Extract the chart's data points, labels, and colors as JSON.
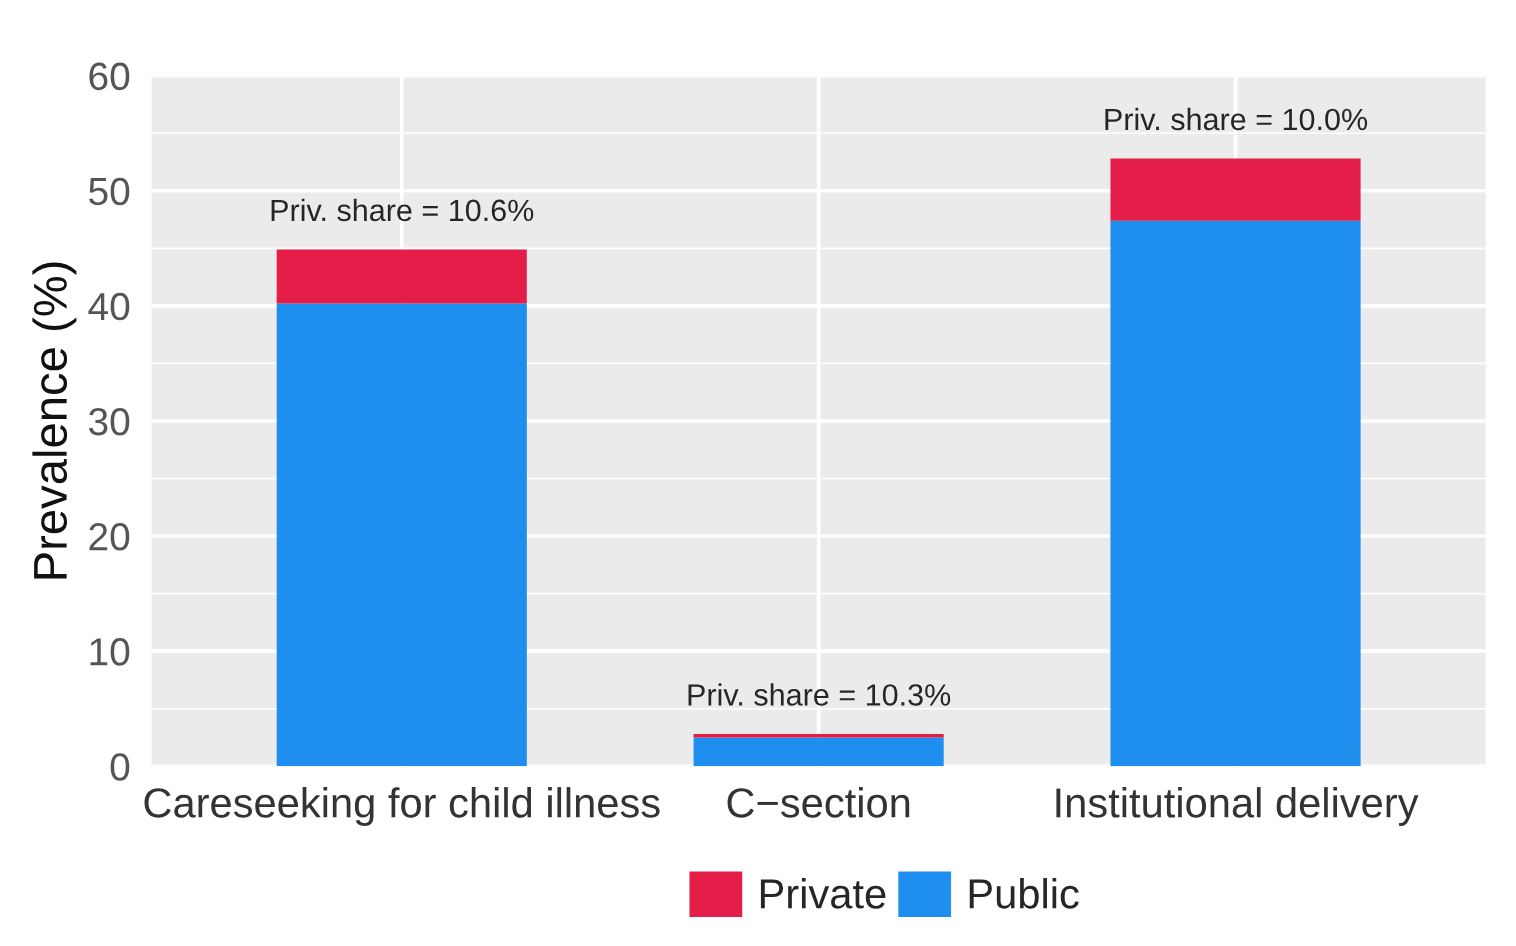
{
  "chart_data": {
    "type": "bar",
    "stacked": true,
    "ylabel": "Prevalence (%)",
    "categories": [
      "Careseeking for child illness",
      "C−section",
      "Institutional delivery"
    ],
    "series": [
      {
        "name": "Public",
        "color": "#1f8fef",
        "values": [
          40.2,
          2.5,
          47.4
        ]
      },
      {
        "name": "Private",
        "color": "#e41e48",
        "values": [
          4.7,
          0.3,
          5.4
        ]
      }
    ],
    "ylim": [
      0,
      60
    ],
    "yticks": [
      0,
      10,
      20,
      30,
      40,
      50,
      60
    ],
    "grid": true,
    "legend": "bottom",
    "annotations": [
      {
        "text": "Priv. share = 10.6%",
        "x": "Careseeking for child illness",
        "y": 44.9
      },
      {
        "text": "Priv. share = 10.3%",
        "x": "C−section",
        "y": 2.8
      },
      {
        "text": "Priv. share = 10.0%",
        "x": "Institutional delivery",
        "y": 52.8
      }
    ]
  }
}
